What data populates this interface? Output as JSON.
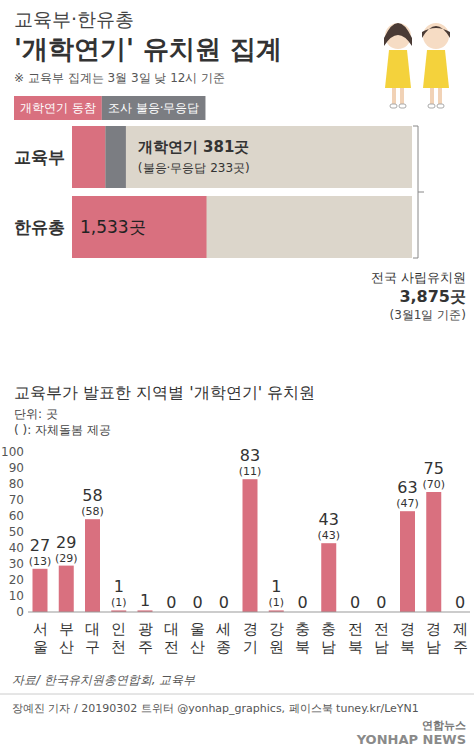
{
  "chart_data": [
    {
      "type": "bar",
      "orientation": "horizontal",
      "stacked": true,
      "subtitle": "교육부·한유총",
      "title": "'개학연기' 유치원 집계",
      "note": "※ 교육부 집계는 3월 3일 낮 12시 기준",
      "categories": [
        "교육부",
        "한유총"
      ],
      "series": [
        {
          "name": "개학연기 동참",
          "color": "#d9707f",
          "values": [
            381,
            1533
          ],
          "value_labels": [
            "개학연기 381곳",
            "1,533곳"
          ]
        },
        {
          "name": "조사 불응·무응답",
          "color": "#7b7d82",
          "values": [
            233,
            null
          ],
          "value_labels": [
            "(불응·무응답 233곳)",
            null
          ]
        }
      ],
      "total": {
        "name": "전국 사립유치원",
        "value": 3875,
        "label": "3,875곳",
        "note": "(3월1일 기준)",
        "color": "#dcd6cb"
      },
      "xlim": [
        0,
        3875
      ],
      "data_labels": true,
      "tick_labels": false,
      "legend": "top-left"
    },
    {
      "type": "bar",
      "title": "교육부가 발표한 지역별 '개학연기' 유치원",
      "unit": "단위: 곳",
      "annotation": "( ): 자체돌봄 제공",
      "categories": [
        "서울",
        "부산",
        "대구",
        "인천",
        "광주",
        "대전",
        "울산",
        "세종",
        "경기",
        "강원",
        "충북",
        "충남",
        "전북",
        "전남",
        "경북",
        "경남",
        "제주"
      ],
      "values": [
        27,
        29,
        58,
        1,
        1,
        0,
        0,
        0,
        83,
        1,
        0,
        43,
        0,
        0,
        63,
        75,
        0
      ],
      "self_care": [
        13,
        29,
        58,
        1,
        null,
        null,
        null,
        null,
        11,
        1,
        null,
        43,
        null,
        null,
        47,
        70,
        null
      ],
      "self_care_labels": [
        "(13)",
        "(29)",
        "(58)",
        "(1)",
        null,
        null,
        null,
        null,
        "(11)",
        "(1)",
        null,
        "(43)",
        null,
        null,
        "(47)",
        "(70)",
        null
      ],
      "color": "#d9707f",
      "ylim": [
        0,
        100
      ],
      "yticks": [
        0,
        10,
        20,
        30,
        40,
        50,
        60,
        70,
        80,
        90,
        100
      ],
      "grid": false,
      "data_labels": true,
      "tick_labels": true
    }
  ],
  "source": "자료/ 한국유치원총연합회, 교육부",
  "credit": "장예진 기자 / 20190302 트위터 @yonhap_graphics, 페이스북 tuney.kr/LeYN1",
  "logo": [
    "연합뉴스",
    "YONHAP NEWS"
  ]
}
